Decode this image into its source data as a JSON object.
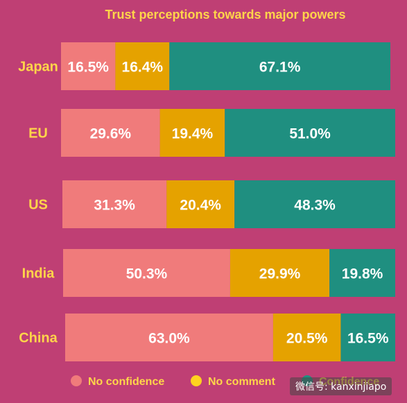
{
  "chart_data": {
    "type": "bar",
    "orientation": "horizontal",
    "stacked": true,
    "title": "Trust perceptions towards major powers",
    "categories": [
      "Japan",
      "EU",
      "US",
      "India",
      "China"
    ],
    "series": [
      {
        "name": "No confidence",
        "values": [
          16.5,
          29.6,
          31.3,
          50.3,
          63.0
        ],
        "color": "#f07b7b"
      },
      {
        "name": "No comment",
        "values": [
          16.4,
          19.4,
          20.4,
          29.9,
          20.5
        ],
        "color": "#e5a200"
      },
      {
        "name": "Confidence",
        "values": [
          67.1,
          51.0,
          48.3,
          19.8,
          16.5
        ],
        "color": "#1f8f80"
      }
    ],
    "legend_dot_colors": [
      "#f07b7b",
      "#ffd21f",
      "#1f8f80"
    ],
    "value_suffix": "%",
    "xlim": [
      0,
      100
    ],
    "legend_position": "bottom",
    "grid": false
  },
  "colors": {
    "background": "#bf3f74",
    "title": "#ffd54a",
    "category_label": "#ffd54a",
    "value_label": "#ffffff",
    "legend_text": "#ffd54a"
  },
  "watermark": {
    "text": "微信号: kanxinjiapo"
  }
}
